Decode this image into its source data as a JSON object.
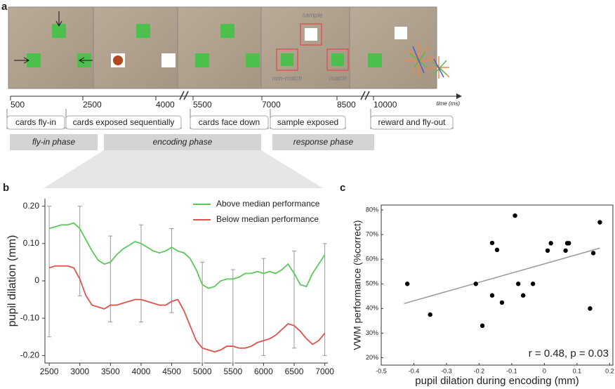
{
  "panel_a": {
    "label": "a",
    "screen_labels": [
      "sample",
      "non-match",
      "match"
    ],
    "timeline": {
      "ticks": [
        500,
        2500,
        4000,
        5500,
        7000,
        8500,
        10000
      ],
      "unit_label": "time (ms)"
    },
    "events": [
      "cards fly-in",
      "cards exposed sequentially",
      "cards face down",
      "sample exposed",
      "reward and fly-out"
    ],
    "phases": [
      "fly-in phase",
      "encoding phase",
      "response phase"
    ]
  },
  "chart_data": [
    {
      "type": "line",
      "panel_label": "b",
      "ylabel": "pupil dilation (mm)",
      "x": [
        2500,
        2600,
        2700,
        2800,
        2900,
        3000,
        3100,
        3200,
        3300,
        3400,
        3500,
        3600,
        3700,
        3800,
        3900,
        4000,
        4100,
        4200,
        4300,
        4400,
        4500,
        4600,
        4700,
        4800,
        4900,
        5000,
        5100,
        5200,
        5300,
        5400,
        5500,
        5600,
        5700,
        5800,
        5900,
        6000,
        6100,
        6200,
        6300,
        6400,
        6500,
        6600,
        6700,
        6800,
        6900,
        7000
      ],
      "series": [
        {
          "name": "Above median performance",
          "color": "#5cc85c",
          "values": [
            0.14,
            0.145,
            0.15,
            0.15,
            0.155,
            0.14,
            0.11,
            0.08,
            0.055,
            0.045,
            0.05,
            0.07,
            0.085,
            0.095,
            0.105,
            0.1,
            0.09,
            0.08,
            0.075,
            0.08,
            0.09,
            0.08,
            0.075,
            0.06,
            0.03,
            -0.01,
            -0.02,
            -0.015,
            0.0,
            0.005,
            0.005,
            0.01,
            0.02,
            0.02,
            0.025,
            0.02,
            0.025,
            0.02,
            0.03,
            0.045,
            0.02,
            -0.01,
            -0.015,
            0.02,
            0.045,
            0.07
          ]
        },
        {
          "name": "Below median performance",
          "color": "#e0524a",
          "values": [
            0.035,
            0.04,
            0.04,
            0.04,
            0.035,
            0.005,
            -0.04,
            -0.065,
            -0.07,
            -0.075,
            -0.065,
            -0.065,
            -0.06,
            -0.055,
            -0.05,
            -0.05,
            -0.055,
            -0.06,
            -0.065,
            -0.065,
            -0.055,
            -0.05,
            -0.08,
            -0.12,
            -0.16,
            -0.18,
            -0.185,
            -0.19,
            -0.185,
            -0.175,
            -0.175,
            -0.18,
            -0.18,
            -0.175,
            -0.165,
            -0.16,
            -0.155,
            -0.145,
            -0.13,
            -0.115,
            -0.12,
            -0.135,
            -0.155,
            -0.17,
            -0.16,
            -0.14
          ]
        }
      ],
      "error_bars": {
        "x": [
          2500,
          3000,
          3500,
          4000,
          4500,
          5000,
          5500,
          6000,
          6500,
          7000
        ],
        "upper": [
          0.2,
          0.2,
          0.12,
          0.15,
          0.14,
          0.05,
          0.03,
          0.06,
          0.08,
          0.1
        ],
        "lower": [
          -0.15,
          -0.04,
          -0.11,
          -0.11,
          -0.085,
          -0.22,
          -0.22,
          -0.2,
          -0.18,
          -0.2
        ],
        "color": "#999999"
      },
      "xlim": [
        2430,
        7050
      ],
      "ylim": [
        -0.22,
        0.22
      ],
      "xticks": [
        2500,
        3000,
        3500,
        4000,
        4500,
        5000,
        5500,
        6000,
        6500,
        7000
      ],
      "yticks": [
        {
          "value": 0.2,
          "label": "0.20"
        },
        {
          "value": 0.1,
          "label": "0.10"
        },
        0,
        {
          "value": -0.1,
          "label": "-0.10"
        },
        {
          "value": -0.2,
          "label": "-0.20"
        }
      ]
    },
    {
      "type": "scatter",
      "panel_label": "c",
      "xlabel": "pupil dilation during encoding (mm)",
      "ylabel": "VWM performance (%correct)",
      "annotation": "r = 0.48, p = 0.03",
      "x": [
        -0.42,
        -0.35,
        -0.21,
        -0.19,
        -0.16,
        -0.16,
        -0.145,
        -0.13,
        -0.09,
        -0.08,
        -0.065,
        -0.035,
        0.01,
        0.02,
        0.065,
        0.07,
        0.075,
        0.14,
        0.15,
        0.17
      ],
      "values": [
        50,
        37.5,
        50,
        33,
        45.3,
        66.6,
        63.8,
        42.4,
        77.7,
        50,
        45.3,
        50,
        63.5,
        66.5,
        63.5,
        66.5,
        66.5,
        40,
        62.5,
        75
      ],
      "color": "#000000",
      "trend_line": {
        "x": [
          -0.43,
          0.17
        ],
        "values": [
          42,
          64.5
        ],
        "color": "#999999"
      },
      "xlim": [
        -0.5,
        0.21
      ],
      "ylim": [
        17,
        82
      ],
      "xticks": [
        -0.5,
        -0.4,
        -0.3,
        -0.2,
        -0.1,
        0,
        0.1,
        0.2
      ],
      "yticks": [
        {
          "value": 20,
          "label": "20%"
        },
        {
          "value": 30,
          "label": "30%"
        },
        {
          "value": 40,
          "label": "40%"
        },
        {
          "value": 50,
          "label": "50%"
        },
        {
          "value": 60,
          "label": "60%"
        },
        {
          "value": 70,
          "label": "70%"
        },
        {
          "value": 80,
          "label": "80%"
        }
      ]
    }
  ]
}
